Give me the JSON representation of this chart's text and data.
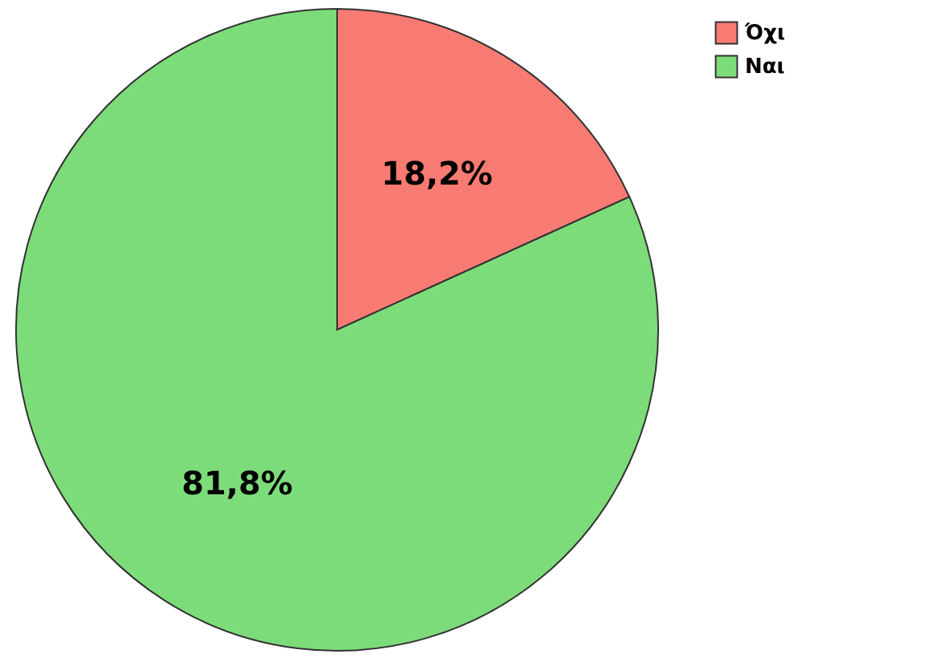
{
  "chart_data": {
    "type": "pie",
    "categories": [
      "Όχι",
      "Ναι"
    ],
    "values": [
      18.2,
      81.8
    ],
    "colors": [
      "#f77b72",
      "#7ddc7a"
    ],
    "value_labels": [
      "18,2%",
      "81,8%"
    ],
    "legend": "top right"
  }
}
